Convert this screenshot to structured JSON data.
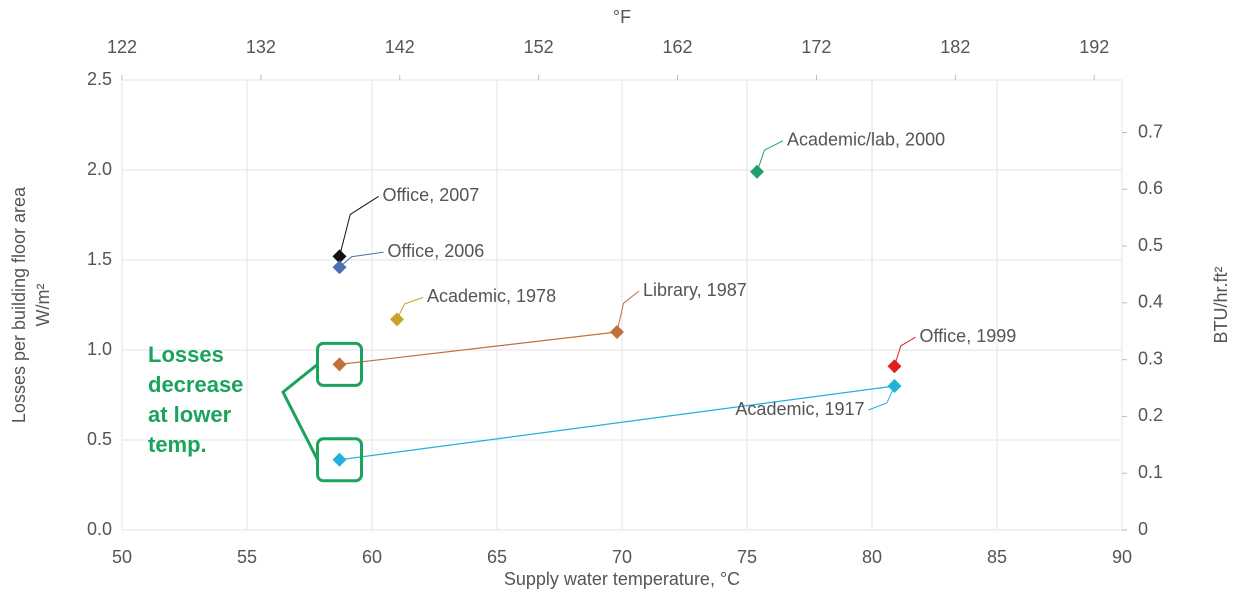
{
  "chart_data": {
    "type": "scatter",
    "xlabel": "Supply water temperature, °C",
    "x2label": "°F",
    "ylabel": [
      "Losses per building floor area",
      "W/m²"
    ],
    "y2label": "BTU/hr.ft²",
    "xlim": [
      50,
      90
    ],
    "xticks": [
      50,
      55,
      60,
      65,
      70,
      75,
      80,
      85,
      90
    ],
    "x2lim": [
      122,
      194
    ],
    "x2ticks": [
      122,
      132,
      142,
      152,
      162,
      172,
      182,
      192
    ],
    "ylim": [
      0,
      2.5
    ],
    "yticks": [
      {
        "value": 0,
        "label": "0.0"
      },
      0.5,
      {
        "value": 1,
        "label": "1.0"
      },
      1.5,
      {
        "value": 2,
        "label": "2.0"
      },
      2.5
    ],
    "y2lim": [
      0,
      0.7925
    ],
    "y2ticks": [
      0,
      0.1,
      0.2,
      0.3,
      0.4,
      0.5,
      0.6,
      0.7
    ],
    "grid": true,
    "series": [
      {
        "name": "Office, 2007",
        "color": "#111111",
        "x": [
          58.7
        ],
        "values": [
          1.52
        ]
      },
      {
        "name": "Office, 2006",
        "color": "#4a6fb5",
        "x": [
          58.7
        ],
        "values": [
          1.46
        ]
      },
      {
        "name": "Academic, 1978",
        "color": "#c9a227",
        "x": [
          61.0
        ],
        "values": [
          1.17
        ]
      },
      {
        "name": "Library, 1987",
        "color": "#c0703a",
        "x": [
          69.8,
          58.7
        ],
        "values": [
          1.1,
          0.92
        ]
      },
      {
        "name": "Academic/lab, 2000",
        "color": "#1f9e6e",
        "x": [
          75.4
        ],
        "values": [
          1.99
        ]
      },
      {
        "name": "Office, 1999",
        "color": "#e02020",
        "x": [
          80.9
        ],
        "values": [
          0.91
        ]
      },
      {
        "name": "Academic, 1917",
        "color": "#22b0dc",
        "x": [
          80.9,
          58.7
        ],
        "values": [
          0.8,
          0.39
        ]
      }
    ],
    "annotation": [
      "Losses",
      "decrease",
      "at lower",
      "temp."
    ]
  }
}
